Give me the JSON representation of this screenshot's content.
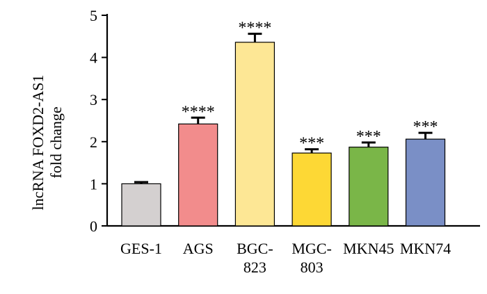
{
  "chart_data": {
    "type": "bar",
    "title": "",
    "xlabel": "",
    "ylabel_lines": [
      "lncRNA FOXD2-AS1",
      "fold change"
    ],
    "ylim": [
      0,
      5
    ],
    "yticks": [
      "0",
      "1",
      "2",
      "3",
      "4",
      "5"
    ],
    "categories": [
      {
        "lines": [
          "GES-1"
        ]
      },
      {
        "lines": [
          "AGS"
        ]
      },
      {
        "lines": [
          "BGC-",
          "823"
        ]
      },
      {
        "lines": [
          "MGC-",
          "803"
        ]
      },
      {
        "lines": [
          "MKN45"
        ]
      },
      {
        "lines": [
          "MKN74"
        ]
      }
    ],
    "values": [
      1.0,
      2.42,
      4.36,
      1.73,
      1.87,
      2.06
    ],
    "errors": [
      0.04,
      0.15,
      0.2,
      0.09,
      0.11,
      0.15
    ],
    "significance": [
      "",
      "****",
      "****",
      "***",
      "***",
      "***"
    ],
    "colors": [
      "#d4d0d0",
      "#f28c8c",
      "#fde795",
      "#fdd835",
      "#7ab648",
      "#7a8fc6"
    ]
  }
}
